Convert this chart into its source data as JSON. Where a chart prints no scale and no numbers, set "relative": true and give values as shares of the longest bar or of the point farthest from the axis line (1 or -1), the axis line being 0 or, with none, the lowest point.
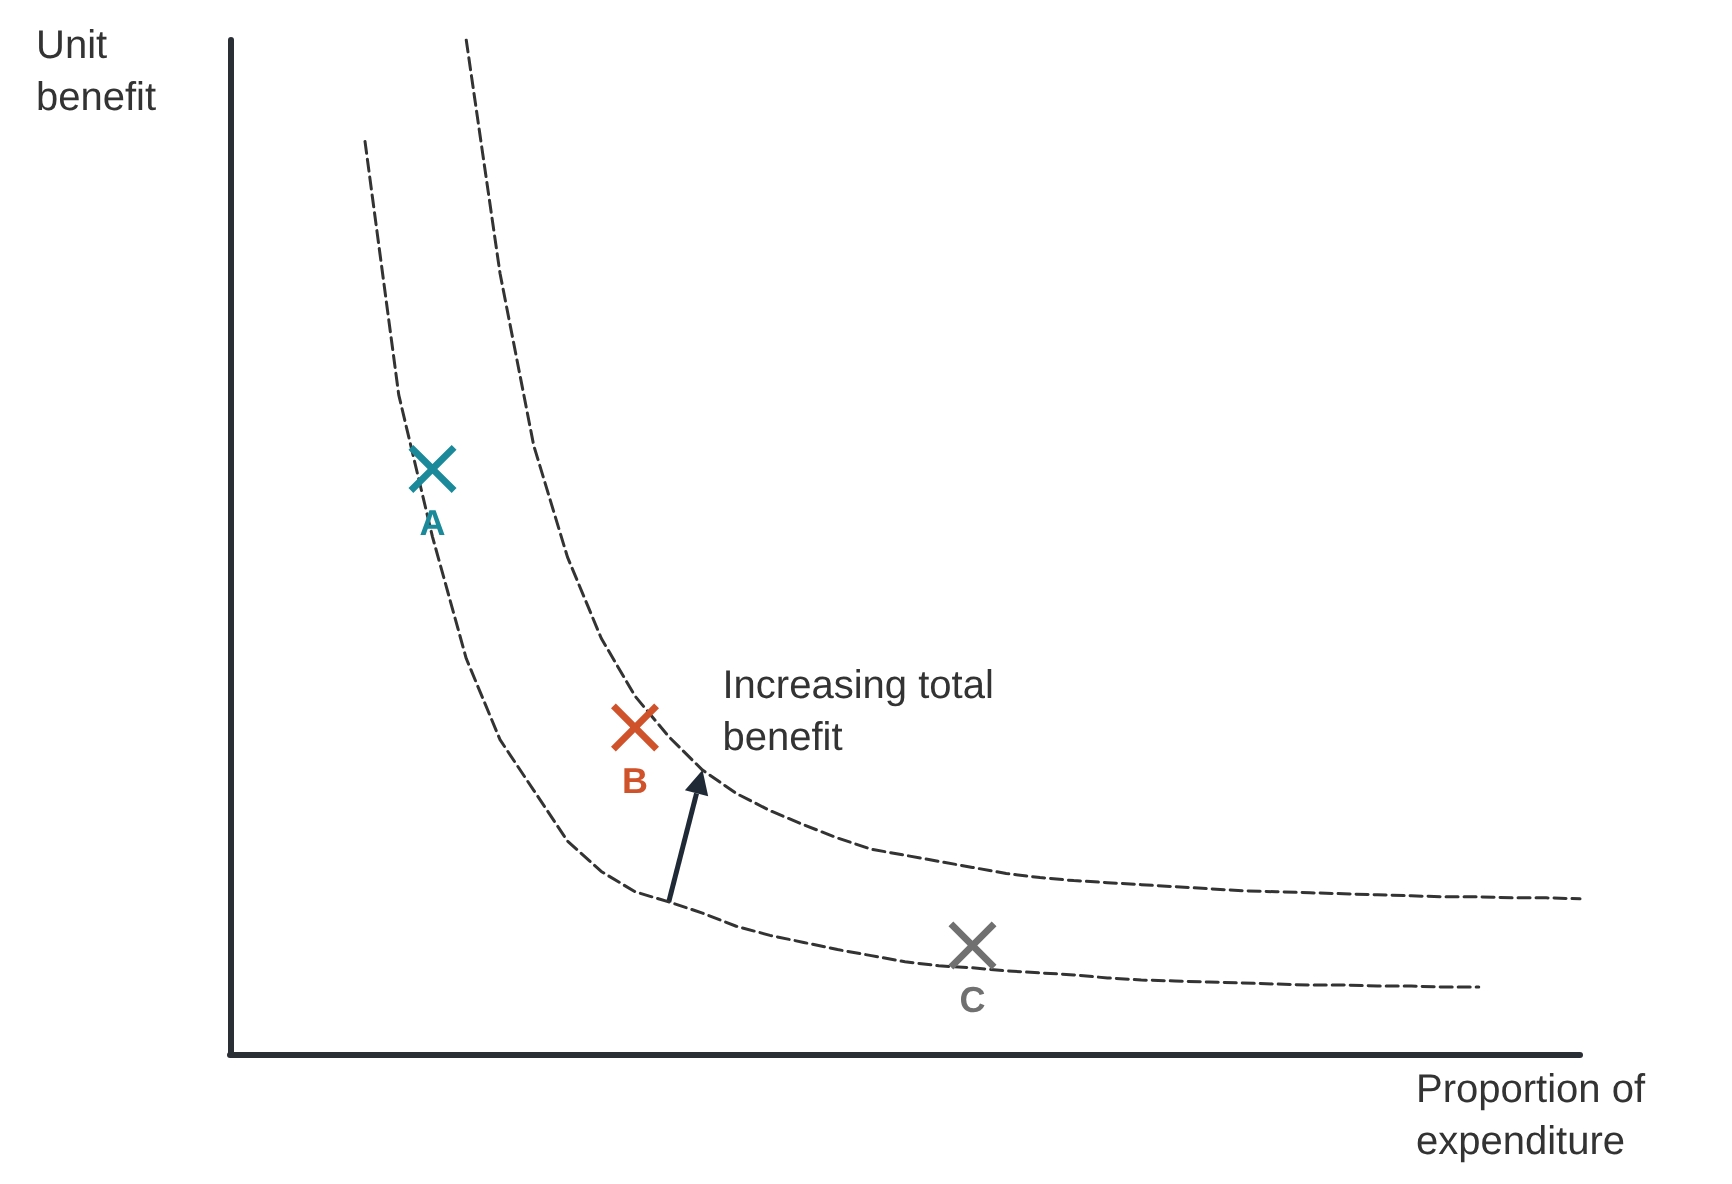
{
  "chart_data": {
    "type": "line",
    "relative": true,
    "ylabel": "Unit benefit",
    "xlabel": "Proportion of expenditure",
    "grid": false,
    "annotations": [
      "Increasing total benefit"
    ],
    "categories": [
      null,
      null,
      null,
      null,
      null,
      null,
      null,
      null,
      null,
      null,
      null,
      null,
      null,
      null,
      null,
      null,
      null,
      null,
      null,
      null,
      null,
      null,
      null,
      null,
      null,
      null,
      null,
      null,
      null,
      null,
      null,
      null,
      null,
      null,
      null,
      null,
      null,
      null,
      null,
      null,
      null
    ],
    "series": [
      {
        "color": "#333333",
        "line_style": "dashed",
        "marker": "none",
        "values": [
          null,
          null,
          null,
          null,
          0.9,
          0.65,
          0.51,
          0.39,
          0.31,
          0.26,
          0.21,
          0.18,
          0.16,
          0.15,
          0.139,
          0.126,
          0.117,
          0.11,
          0.103,
          0.097,
          0.091,
          0.087,
          0.085,
          0.082,
          0.08,
          0.078,
          0.075,
          0.073,
          0.072,
          0.071,
          0.07,
          0.069,
          0.068,
          0.068,
          0.067,
          0.067,
          0.066,
          0.066,
          null,
          null,
          null
        ]
      },
      {
        "color": "#333333",
        "line_style": "dashed",
        "marker": "none",
        "values": [
          null,
          null,
          null,
          null,
          null,
          null,
          null,
          1,
          0.77,
          0.6,
          0.49,
          0.41,
          0.353,
          0.313,
          0.28,
          0.257,
          0.24,
          0.226,
          0.213,
          0.202,
          0.196,
          0.19,
          0.184,
          0.178,
          0.174,
          0.171,
          0.169,
          0.167,
          0.165,
          0.163,
          0.161,
          0.16,
          0.159,
          0.158,
          0.157,
          0.156,
          0.155,
          0.155,
          0.154,
          0.154,
          0.153
        ]
      },
      {
        "name": "A",
        "color": "#1a8a9a",
        "marker": "cross",
        "values": [
          null,
          null,
          null,
          null,
          null,
          null,
          0.577,
          null,
          null,
          null,
          null,
          null,
          null,
          null,
          null,
          null,
          null,
          null,
          null,
          null,
          null,
          null,
          null,
          null,
          null,
          null,
          null,
          null,
          null,
          null,
          null,
          null,
          null,
          null,
          null,
          null,
          null,
          null,
          null,
          null,
          null
        ]
      },
      {
        "name": "B",
        "color": "#d0522a",
        "marker": "cross",
        "values": [
          null,
          null,
          null,
          null,
          null,
          null,
          null,
          null,
          null,
          null,
          null,
          null,
          0.322,
          null,
          null,
          null,
          null,
          null,
          null,
          null,
          null,
          null,
          null,
          null,
          null,
          null,
          null,
          null,
          null,
          null,
          null,
          null,
          null,
          null,
          null,
          null,
          null,
          null,
          null,
          null,
          null
        ]
      },
      {
        "name": "C",
        "color": "#707070",
        "marker": "cross",
        "values": [
          null,
          null,
          null,
          null,
          null,
          null,
          null,
          null,
          null,
          null,
          null,
          null,
          null,
          null,
          null,
          null,
          null,
          null,
          null,
          null,
          null,
          null,
          0.107,
          null,
          null,
          null,
          null,
          null,
          null,
          null,
          null,
          null,
          null,
          null,
          null,
          null,
          null,
          null,
          null,
          null,
          null
        ]
      }
    ]
  }
}
